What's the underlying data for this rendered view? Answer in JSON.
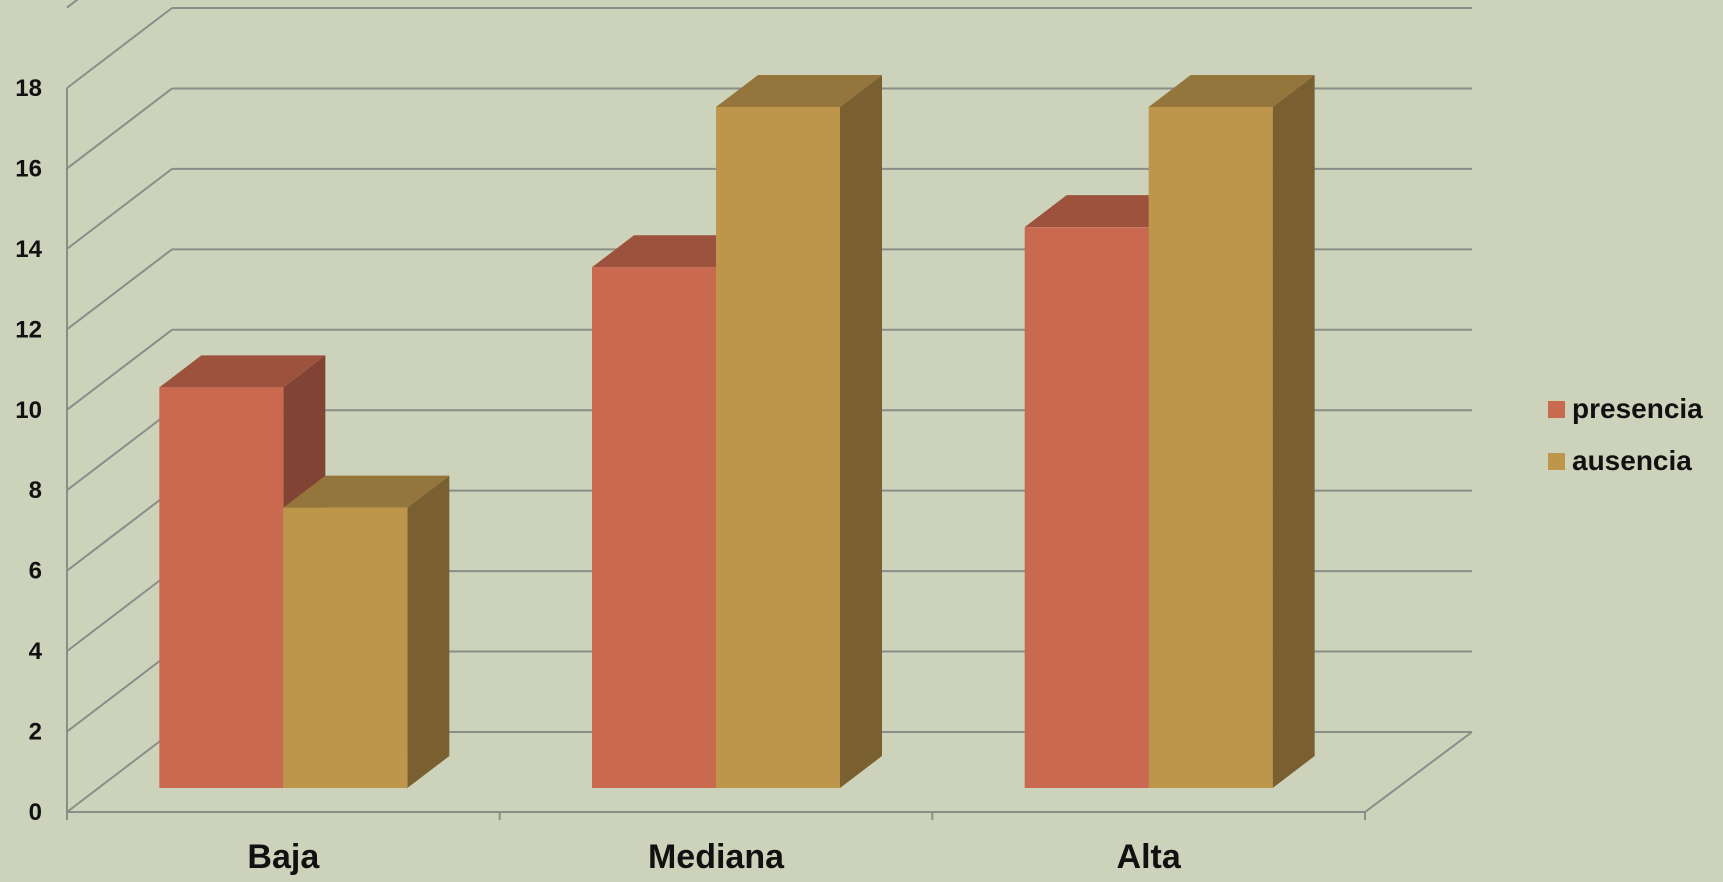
{
  "chart_data": {
    "type": "bar",
    "categories": [
      "Baja",
      "Mediana",
      "Alta"
    ],
    "series": [
      {
        "name": "presencia",
        "values": [
          10,
          13,
          14
        ],
        "color": "#c9694f"
      },
      {
        "name": "ausencia",
        "values": [
          7,
          17,
          17
        ],
        "color": "#be964b"
      }
    ],
    "ylim": [
      0,
      18
    ],
    "y_ticks": [
      "0",
      "2",
      "4",
      "6",
      "8",
      "10",
      "12",
      "14",
      "16",
      "18"
    ],
    "y_tick_step": 2,
    "grid": true,
    "legend_position": "right",
    "style": "3d-clustered-column",
    "background_color": "#cdd3bb",
    "grid_color": "#8a8e88"
  }
}
